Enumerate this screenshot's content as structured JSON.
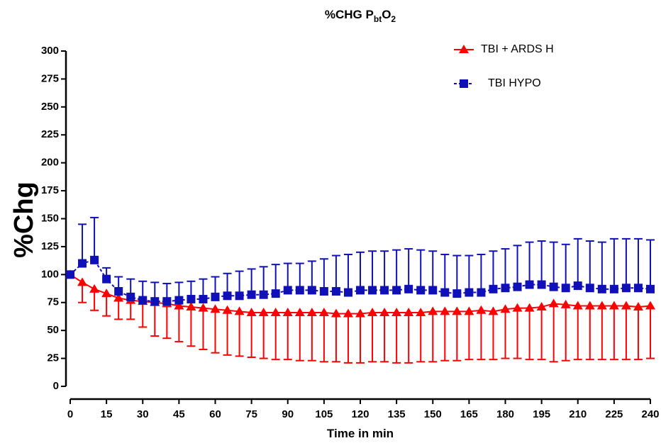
{
  "chart_data": {
    "type": "line",
    "title": "%CHG PbtO2",
    "x_label": "Time in min",
    "y_label": "%Chg",
    "x": [
      0,
      5,
      10,
      15,
      20,
      25,
      30,
      35,
      40,
      45,
      50,
      55,
      60,
      65,
      70,
      75,
      80,
      85,
      90,
      95,
      100,
      105,
      110,
      115,
      120,
      125,
      130,
      135,
      140,
      145,
      150,
      155,
      160,
      165,
      170,
      175,
      180,
      185,
      190,
      195,
      200,
      205,
      210,
      215,
      220,
      225,
      230,
      235,
      240
    ],
    "series": [
      {
        "name": "TBI + ARDS H",
        "color": "#ff0000",
        "marker": "triangle",
        "dashed": false,
        "error_direction": "down",
        "values": [
          100,
          93,
          87,
          83,
          79,
          77,
          76,
          75,
          74,
          72,
          71,
          70,
          69,
          68,
          67,
          66,
          66,
          66,
          66,
          66,
          66,
          66,
          65,
          65,
          65,
          66,
          66,
          66,
          66,
          66,
          67,
          67,
          67,
          67,
          68,
          67,
          69,
          70,
          70,
          71,
          74,
          73,
          72,
          72,
          72,
          72,
          72,
          71,
          72
        ],
        "errors": [
          0,
          18,
          19,
          20,
          19,
          17,
          23,
          30,
          31,
          32,
          35,
          37,
          39,
          40,
          40,
          40,
          41,
          42,
          42,
          43,
          43,
          44,
          43,
          44,
          44,
          44,
          44,
          45,
          45,
          44,
          45,
          44,
          44,
          43,
          44,
          43,
          44,
          45,
          46,
          47,
          52,
          50,
          48,
          48,
          48,
          48,
          48,
          47,
          47
        ]
      },
      {
        "name": "TBI HYPO",
        "color": "#1010b8",
        "marker": "square",
        "dashed": true,
        "error_direction": "up",
        "values": [
          100,
          110,
          113,
          96,
          85,
          80,
          77,
          76,
          76,
          77,
          78,
          78,
          80,
          81,
          81,
          82,
          82,
          83,
          86,
          86,
          86,
          85,
          85,
          84,
          86,
          86,
          86,
          86,
          87,
          86,
          86,
          84,
          83,
          84,
          84,
          87,
          88,
          89,
          91,
          91,
          89,
          88,
          90,
          88,
          87,
          87,
          88,
          88,
          87
        ],
        "errors": [
          0,
          35,
          38,
          10,
          13,
          16,
          17,
          17,
          16,
          16,
          16,
          18,
          18,
          20,
          22,
          23,
          25,
          26,
          24,
          24,
          26,
          29,
          32,
          34,
          34,
          35,
          35,
          36,
          36,
          36,
          35,
          34,
          34,
          33,
          34,
          34,
          35,
          37,
          38,
          39,
          40,
          39,
          42,
          42,
          42,
          45,
          44,
          44,
          44
        ]
      }
    ],
    "xlim": [
      0,
      240
    ],
    "xticks": [
      0,
      15,
      30,
      45,
      60,
      75,
      90,
      105,
      120,
      135,
      150,
      165,
      180,
      195,
      210,
      225,
      240
    ],
    "ylim": [
      0,
      300
    ],
    "yticks": [
      0,
      25,
      50,
      75,
      100,
      125,
      150,
      175,
      200,
      225,
      250,
      275,
      300
    ],
    "legend": "upper right"
  }
}
